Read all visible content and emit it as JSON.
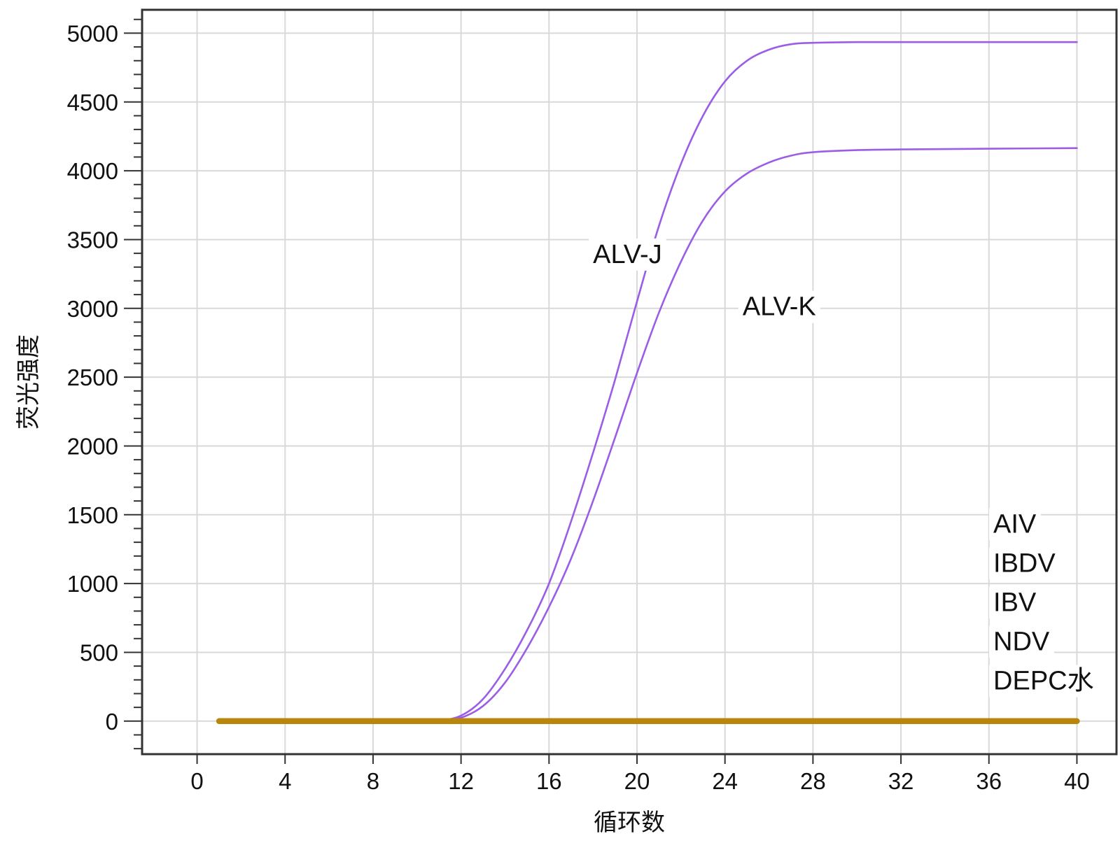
{
  "chart_data": {
    "type": "line",
    "xlabel": "循环数",
    "ylabel": "荧光强度",
    "xlim": [
      -2.5,
      41.8
    ],
    "ylim": [
      -240,
      5170
    ],
    "x_ticks": [
      0,
      4,
      8,
      12,
      16,
      20,
      24,
      28,
      32,
      36,
      40
    ],
    "y_ticks": [
      0,
      500,
      1000,
      1500,
      2000,
      2500,
      3000,
      3500,
      4000,
      4500,
      5000
    ],
    "y_minor_step": 100,
    "grid": true,
    "series": [
      {
        "name": "ALV-J",
        "color": "#9b5de5",
        "x": [
          1,
          4,
          8,
          10,
          11,
          12,
          13,
          14,
          15,
          16,
          17,
          18,
          19,
          20,
          21,
          22,
          23,
          24,
          25,
          26,
          27,
          28,
          30,
          32,
          36,
          40
        ],
        "y": [
          0,
          0,
          0,
          2,
          5,
          40,
          160,
          380,
          660,
          1000,
          1450,
          1950,
          2480,
          3050,
          3600,
          4050,
          4400,
          4650,
          4800,
          4880,
          4920,
          4930,
          4935,
          4935,
          4935,
          4935
        ]
      },
      {
        "name": "ALV-K",
        "color": "#9b5de5",
        "x": [
          1,
          4,
          8,
          10,
          11,
          12,
          13,
          14,
          15,
          16,
          17,
          18,
          19,
          20,
          21,
          22,
          23,
          24,
          25,
          26,
          27,
          28,
          30,
          32,
          36,
          40
        ],
        "y": [
          0,
          0,
          0,
          2,
          4,
          25,
          110,
          280,
          530,
          830,
          1180,
          1600,
          2060,
          2530,
          2970,
          3340,
          3640,
          3850,
          3980,
          4060,
          4110,
          4135,
          4150,
          4155,
          4160,
          4165
        ]
      },
      {
        "name": "AIV",
        "color": "#b8860b",
        "x": [
          1,
          40
        ],
        "y": [
          0,
          0
        ]
      },
      {
        "name": "IBDV",
        "color": "#b8860b",
        "x": [
          1,
          40
        ],
        "y": [
          0,
          0
        ]
      },
      {
        "name": "IBV",
        "color": "#b8860b",
        "x": [
          1,
          40
        ],
        "y": [
          0,
          0
        ]
      },
      {
        "name": "NDV",
        "color": "#b8860b",
        "x": [
          1,
          40
        ],
        "y": [
          0,
          0
        ]
      },
      {
        "name": "DEPC水",
        "color": "#b8860b",
        "x": [
          1,
          40
        ],
        "y": [
          0,
          0
        ]
      }
    ],
    "annotations": [
      {
        "text": "ALV-J",
        "x": 18.0,
        "y": 3330
      },
      {
        "text": "ALV-K",
        "x": 24.8,
        "y": 2950
      },
      {
        "text": "AIV",
        "x": 36.2,
        "y": 1370
      },
      {
        "text": "IBDV",
        "x": 36.2,
        "y": 1085
      },
      {
        "text": "IBV",
        "x": 36.2,
        "y": 800
      },
      {
        "text": "NDV",
        "x": 36.2,
        "y": 515
      },
      {
        "text": "DEPC水",
        "x": 36.2,
        "y": 230
      }
    ]
  }
}
